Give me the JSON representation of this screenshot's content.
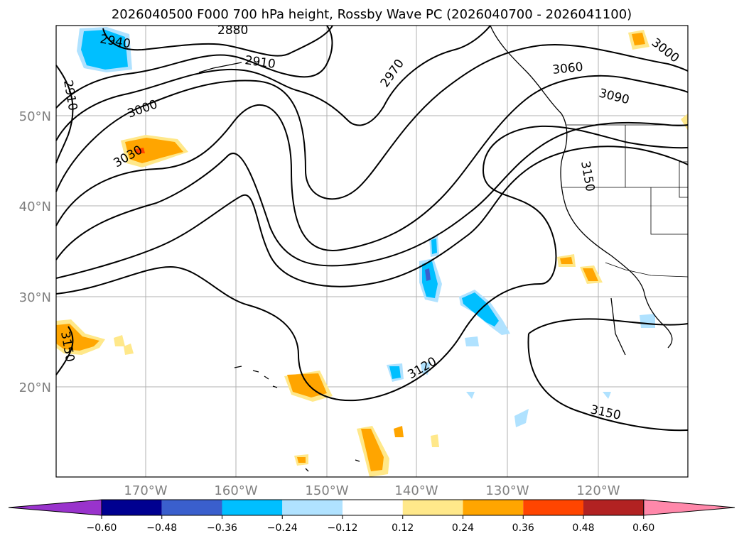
{
  "title": "2026040500 F000 700 hPa height, Rossby Wave PC (2026040700 - 2026041100)",
  "lat_labels": [
    "50°N",
    "40°N",
    "30°N",
    "20°N"
  ],
  "lon_labels": [
    "170°W",
    "160°W",
    "150°W",
    "140°W",
    "130°W",
    "120°W"
  ],
  "contour_labels": [
    "2940",
    "2880",
    "2910",
    "2970",
    "3060",
    "3000",
    "3090",
    "2910",
    "3000",
    "3030",
    "3150",
    "3150",
    "3120",
    "3150"
  ],
  "colorbar": {
    "ticks": [
      "−0.60",
      "−0.48",
      "−0.36",
      "−0.24",
      "−0.12",
      "0.12",
      "0.24",
      "0.36",
      "0.48",
      "0.60"
    ],
    "colors": [
      "#9933cc",
      "#000090",
      "#3a5fcd",
      "#00bfff",
      "#b0e2ff",
      "#ffffff",
      "#ffe88a",
      "#ffa500",
      "#ff4500",
      "#b22222",
      "#ff88aa"
    ]
  }
}
